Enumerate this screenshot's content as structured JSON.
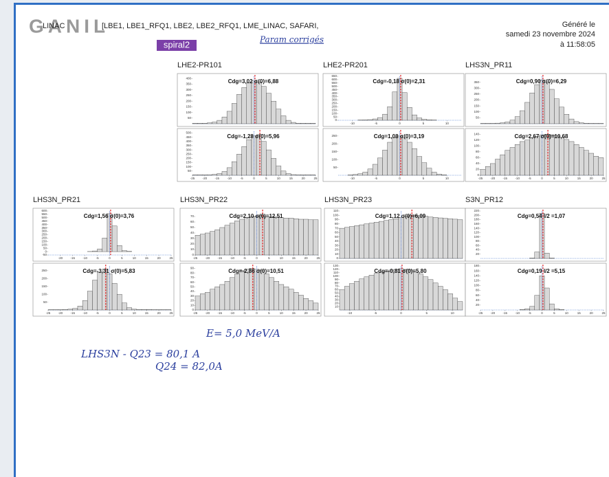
{
  "header": {
    "system": "LINAC",
    "sections": "[LBE1, LBE1_RFQ1, LBE2, LBE2_RFQ1, LME_LINAC, SAFARI,",
    "handwritten": "Param corrigés",
    "generated": "Généré le",
    "date": "samedi 23 novembre 2024",
    "time": "à 11:58:05",
    "logo": "GANIL",
    "logo_sub": "spiral2"
  },
  "groups": [
    {
      "title": "LHE2-PR101",
      "plots": [
        {
          "label": "Cdg=3,02 σ(0)=6,88",
          "xlim": [
            -25,
            25
          ],
          "ylim": [
            0,
            420
          ],
          "yticks": [
            50,
            100,
            150,
            200,
            250,
            300,
            350,
            400
          ],
          "values": [
            5,
            5,
            5,
            8,
            15,
            30,
            60,
            110,
            180,
            260,
            320,
            360,
            380,
            370,
            330,
            270,
            200,
            130,
            70,
            30,
            12,
            5,
            5,
            5,
            5
          ]
        },
        {
          "label": "Cdg=-1,28 σ(0)=5,96",
          "xlim": [
            -25,
            25
          ],
          "ylim": [
            0,
            520
          ],
          "yticks": [
            50,
            100,
            150,
            200,
            250,
            300,
            350,
            400,
            450,
            500
          ],
          "xticks": [
            -25,
            -20,
            -15,
            -10,
            -5,
            0,
            5,
            10,
            15,
            20,
            25
          ],
          "values": [
            5,
            5,
            5,
            5,
            10,
            20,
            45,
            90,
            160,
            250,
            340,
            420,
            470,
            480,
            400,
            300,
            200,
            110,
            50,
            20,
            8,
            5,
            5,
            5,
            5
          ]
        }
      ]
    },
    {
      "title": "LHE2-PR201",
      "plots": [
        {
          "label": "Cdg=-0,18 σ(0)=2,31",
          "xlim": [
            -13,
            13
          ],
          "ylim": [
            0,
            650
          ],
          "yticks": [
            0,
            50,
            100,
            150,
            200,
            250,
            300,
            350,
            400,
            450,
            500,
            550,
            600,
            650
          ],
          "xticks": [
            -10,
            -5,
            0,
            5,
            10
          ],
          "values": [
            0,
            0,
            0,
            0,
            2,
            5,
            10,
            20,
            40,
            90,
            200,
            420,
            620,
            410,
            190,
            80,
            35,
            15,
            8,
            3,
            0,
            0,
            0,
            0,
            0
          ]
        },
        {
          "label": "Cdg=1,08 σ(0)=3,19",
          "xlim": [
            -13,
            13
          ],
          "ylim": [
            0,
            280
          ],
          "yticks": [
            50,
            100,
            150,
            200,
            250
          ],
          "xticks": [
            -10,
            -5,
            0,
            5,
            10
          ],
          "values": [
            0,
            0,
            2,
            5,
            10,
            20,
            40,
            70,
            110,
            160,
            210,
            240,
            250,
            240,
            210,
            170,
            120,
            80,
            45,
            20,
            8,
            3,
            0,
            0,
            0
          ]
        }
      ]
    },
    {
      "title": "LHS3N_PR11",
      "plots": [
        {
          "label": "Cdg=0,90 σ(0)=6,29",
          "xlim": [
            -25,
            25
          ],
          "ylim": [
            0,
            400
          ],
          "yticks": [
            50,
            100,
            150,
            200,
            250,
            300,
            350
          ],
          "values": [
            3,
            3,
            3,
            5,
            8,
            15,
            30,
            60,
            110,
            180,
            260,
            330,
            370,
            350,
            290,
            210,
            140,
            80,
            40,
            18,
            8,
            4,
            3,
            3,
            3
          ]
        },
        {
          "label": "Cdg=2,67 σ(0)=10,68",
          "xlim": [
            -25,
            25
          ],
          "ylim": [
            0,
            150
          ],
          "yticks": [
            0,
            20,
            40,
            60,
            80,
            100,
            120,
            140
          ],
          "xticks": [
            -25,
            -20,
            -15,
            -10,
            -5,
            0,
            5,
            10,
            15,
            20,
            25
          ],
          "values": [
            20,
            30,
            40,
            55,
            70,
            85,
            95,
            105,
            115,
            120,
            128,
            133,
            138,
            140,
            138,
            135,
            130,
            122,
            115,
            105,
            95,
            85,
            75,
            65,
            60
          ]
        }
      ]
    },
    {
      "title": "LHS3N_PR21",
      "plots": [
        {
          "label": "Cdg=1,56 σ(0)=3,76",
          "xlim": [
            -25,
            25
          ],
          "ylim": [
            -50,
            600
          ],
          "yticks": [
            -50,
            0,
            50,
            100,
            150,
            200,
            250,
            300,
            350,
            400,
            450,
            500,
            550,
            600
          ],
          "xticks": [
            -20,
            -15,
            -10,
            -5,
            0,
            5,
            10,
            15,
            20,
            25
          ],
          "values": [
            0,
            0,
            0,
            0,
            0,
            0,
            0,
            0,
            2,
            10,
            40,
            200,
            560,
            380,
            90,
            15,
            3,
            0,
            0,
            0,
            0,
            0,
            0,
            0,
            0
          ]
        },
        {
          "label": "Cdg=-3,31 σ(0)=5,83",
          "xlim": [
            -25,
            25
          ],
          "ylim": [
            0,
            280
          ],
          "yticks": [
            50,
            100,
            150,
            200,
            250
          ],
          "xticks": [
            -25,
            -20,
            -15,
            -10,
            -5,
            0,
            5,
            10,
            15,
            20,
            25
          ],
          "values": [
            2,
            2,
            2,
            3,
            5,
            10,
            25,
            60,
            120,
            190,
            240,
            260,
            230,
            170,
            100,
            45,
            15,
            5,
            3,
            3,
            3,
            2,
            2,
            2,
            2
          ]
        }
      ]
    },
    {
      "title": "LHS3N_PR22",
      "plots": [
        {
          "label": "Cdg=2,10 σ(0)=12,51",
          "xlim": [
            -25,
            25
          ],
          "ylim": [
            0,
            80
          ],
          "yticks": [
            0,
            10,
            20,
            30,
            40,
            50,
            60,
            70
          ],
          "xticks": [
            -25,
            -20,
            -15,
            -10,
            -5,
            0,
            5,
            10,
            15,
            20,
            25
          ],
          "values": [
            36,
            38,
            40,
            43,
            46,
            50,
            54,
            58,
            62,
            65,
            68,
            70,
            71,
            72,
            70,
            70,
            69,
            68,
            67,
            67,
            66,
            65,
            65,
            64,
            64
          ]
        },
        {
          "label": "Cdg=-2,86 σ(0)=10,51",
          "xlim": [
            -25,
            25
          ],
          "ylim": [
            0,
            95
          ],
          "yticks": [
            0,
            10,
            20,
            30,
            40,
            50,
            60,
            70,
            80,
            90
          ],
          "xticks": [
            -25,
            -20,
            -15,
            -10,
            -5,
            0,
            5,
            10,
            15,
            20,
            25
          ],
          "values": [
            30,
            35,
            38,
            45,
            50,
            55,
            62,
            70,
            78,
            85,
            88,
            90,
            88,
            85,
            78,
            70,
            62,
            55,
            50,
            45,
            38,
            32,
            25,
            20,
            15
          ]
        }
      ]
    },
    {
      "title": "LHS3N_PR23",
      "plots": [
        {
          "label": "Cdg=1,12 σ(0)=6,09",
          "xlim": [
            -12,
            12
          ],
          "ylim": [
            0,
            110
          ],
          "yticks": [
            0,
            10,
            20,
            30,
            40,
            50,
            60,
            70,
            80,
            90,
            100,
            110
          ],
          "values": [
            70,
            72,
            74,
            76,
            78,
            80,
            82,
            84,
            86,
            88,
            90,
            92,
            95,
            98,
            100,
            100,
            99,
            98,
            96,
            95,
            94,
            93,
            92,
            91,
            90
          ]
        },
        {
          "label": "Cdg=-0,81 σ(0)=5,80",
          "xlim": [
            -12,
            12
          ],
          "ylim": [
            0,
            130
          ],
          "yticks": [
            10,
            20,
            30,
            40,
            50,
            60,
            70,
            80,
            90,
            100,
            110,
            120,
            130
          ],
          "xticks": [
            -10,
            -5,
            0,
            5,
            10
          ],
          "values": [
            60,
            70,
            78,
            85,
            92,
            98,
            103,
            108,
            112,
            115,
            118,
            120,
            122,
            120,
            118,
            112,
            106,
            98,
            90,
            80,
            70,
            60,
            48,
            35,
            25
          ]
        }
      ]
    },
    {
      "title": "S3N_PR12",
      "plots": [
        {
          "label": "Cdg=0,54 l/2 =1,07",
          "xlim": [
            -25,
            25
          ],
          "ylim": [
            0,
            220
          ],
          "yticks": [
            20,
            40,
            60,
            80,
            100,
            120,
            140,
            160,
            180,
            200,
            220
          ],
          "values": [
            0,
            0,
            0,
            0,
            0,
            0,
            0,
            0,
            0,
            0,
            2,
            30,
            210,
            25,
            2,
            0,
            0,
            0,
            0,
            0,
            0,
            0,
            0,
            0,
            0
          ]
        },
        {
          "label": "Cdg=0,19 l/2 =5,15",
          "xlim": [
            -25,
            25
          ],
          "ylim": [
            0,
            180
          ],
          "yticks": [
            20,
            40,
            60,
            80,
            100,
            120,
            140,
            160,
            180
          ],
          "xticks": [
            -25,
            -20,
            -15,
            -10,
            -5,
            0,
            5,
            10,
            15,
            20,
            25
          ],
          "values": [
            0,
            0,
            0,
            0,
            0,
            0,
            0,
            0,
            2,
            5,
            15,
            60,
            140,
            90,
            25,
            5,
            2,
            0,
            0,
            0,
            0,
            0,
            0,
            0,
            0
          ]
        }
      ]
    }
  ],
  "notes": {
    "energy": "E= 5,0 MeV/A",
    "q23": "LHS3N - Q23 = 80,1 A",
    "q24": "Q24 = 82,0A"
  }
}
